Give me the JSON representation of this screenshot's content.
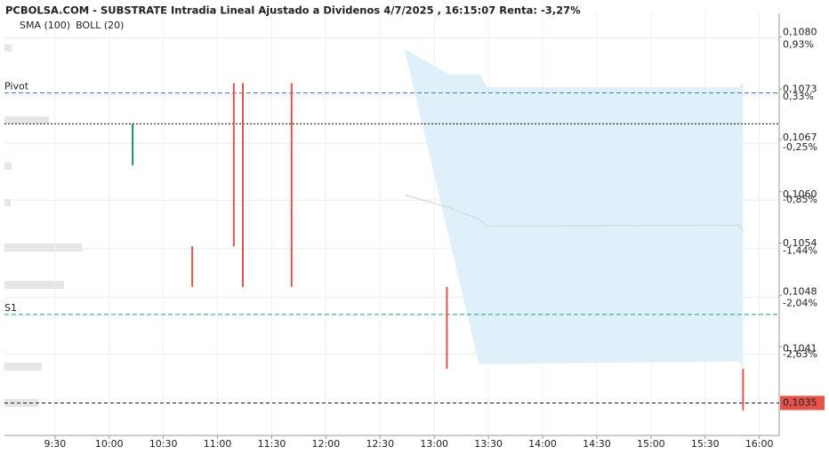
{
  "chart_data": {
    "type": "candlestick",
    "title": "PCBOLSA.COM - SUBSTRATE Intradia Lineal Ajustado a Dividenos 4/7/2025 , 16:15:07 Renta: -3,27%",
    "legend": [
      {
        "name": "SMA (100)",
        "color": "#8fd0f5"
      },
      {
        "name": "BOLL (20)",
        "color": "#c8c8c8"
      }
    ],
    "grid": true,
    "xlim": [
      542,
      971
    ],
    "xticks": [
      {
        "value": 570,
        "label": "9:30"
      },
      {
        "value": 600,
        "label": "10:00"
      },
      {
        "value": 630,
        "label": "10:30"
      },
      {
        "value": 660,
        "label": "11:00"
      },
      {
        "value": 690,
        "label": "11:30"
      },
      {
        "value": 720,
        "label": "12:00"
      },
      {
        "value": 750,
        "label": "12:30"
      },
      {
        "value": 780,
        "label": "13:00"
      },
      {
        "value": 810,
        "label": "13:30"
      },
      {
        "value": 840,
        "label": "14:00"
      },
      {
        "value": 870,
        "label": "14:30"
      },
      {
        "value": 900,
        "label": "15:00"
      },
      {
        "value": 930,
        "label": "15:30"
      },
      {
        "value": 960,
        "label": "16:00"
      }
    ],
    "ylim": [
      0.1031,
      0.1083
    ],
    "yticks": [
      {
        "value": 0.108,
        "label": "0,1080"
      },
      {
        "value": 0.1073,
        "label": "0,1073"
      },
      {
        "value": 0.1067,
        "label": "0,1067"
      },
      {
        "value": 0.106,
        "label": "0,1060"
      },
      {
        "value": 0.1054,
        "label": "0,1054"
      },
      {
        "value": 0.1048,
        "label": "0,1048"
      },
      {
        "value": 0.1041,
        "label": "0,1041"
      }
    ],
    "y2lim": [
      -3.65,
      1.2
    ],
    "y2ticks": [
      {
        "value": 0.93,
        "label": "0,93%"
      },
      {
        "value": 0.33,
        "label": "0,33%"
      },
      {
        "value": -0.25,
        "label": "-0,25%"
      },
      {
        "value": -0.85,
        "label": "-0,85%"
      },
      {
        "value": -1.44,
        "label": "-1,44%"
      },
      {
        "value": -2.04,
        "label": "-2,04%"
      },
      {
        "value": -2.63,
        "label": "-2,63%"
      }
    ],
    "candles": {
      "x": [
        613,
        646,
        669,
        674,
        701,
        787,
        951
      ],
      "high": [
        0.10694,
        0.10543,
        0.10744,
        0.10744,
        0.10744,
        0.10493,
        0.10392
      ],
      "low": [
        0.10643,
        0.10493,
        0.10543,
        0.10493,
        0.10493,
        0.10392,
        0.10341
      ],
      "colors": [
        "#1e8a6a",
        "#e5534b",
        "#e5534b",
        "#e5534b",
        "#e5534b",
        "#e5534b",
        "#e5534b"
      ]
    },
    "bollinger": {
      "x": [
        764,
        788,
        805,
        809,
        949,
        951
      ],
      "upper": [
        0.10785,
        0.10754,
        0.10754,
        0.10738,
        0.10738,
        0.10744
      ],
      "middle": [
        0.10606,
        0.10591,
        0.10576,
        0.10568,
        0.10569,
        0.10561
      ],
      "lower": [
        0.10785,
        0.10559,
        0.10399,
        0.10399,
        0.10402,
        0.10393
      ],
      "color": "#dff0fb",
      "line_color": "#d8d8d8"
    },
    "levels": [
      {
        "name": "Pivot",
        "value": 0.10732,
        "color": "#3a7bd5",
        "dash": "5 3"
      },
      {
        "name": "S1",
        "value": 0.10459,
        "color": "#2a9d8f",
        "dash": "5 3"
      },
      {
        "value": 0.10694,
        "color": "#000000",
        "dash": "2 2"
      },
      {
        "value": 0.1035,
        "label": "0,1035",
        "color": "#1a1a4a",
        "dash": "4 3",
        "label_bg": "#e5534b"
      }
    ]
  }
}
